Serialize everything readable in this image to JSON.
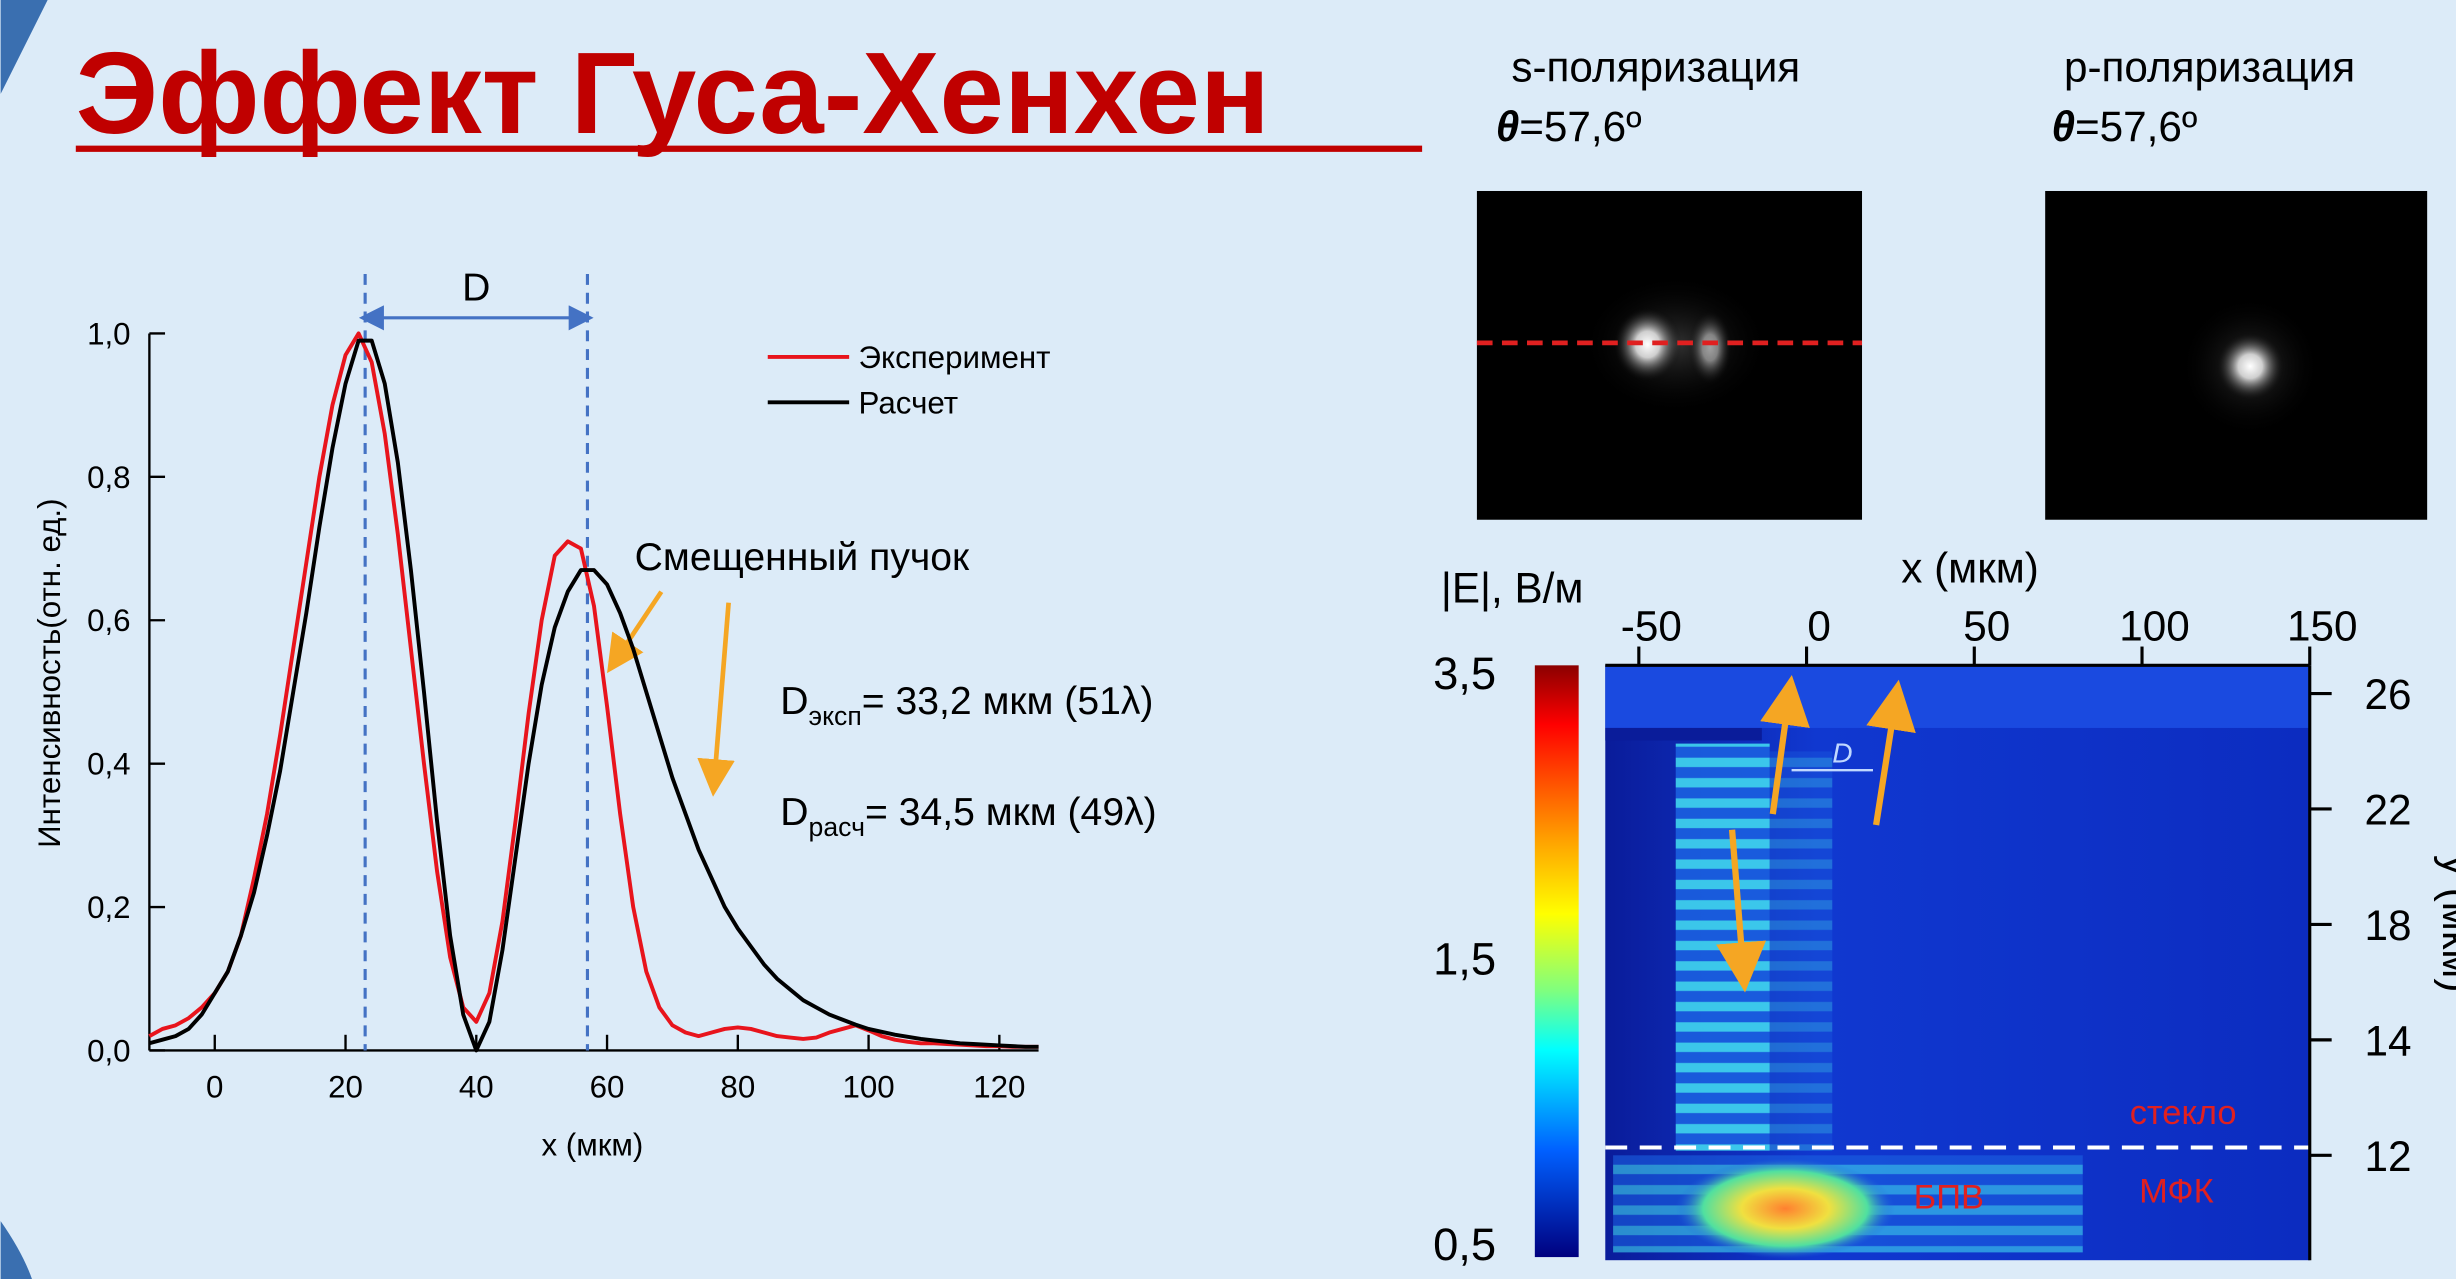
{
  "title": "Эффект Гуса-Хенхен",
  "images": [
    {
      "heading": "s-поляризация",
      "angle_symbol": "θ",
      "angle_value": "=57,6º"
    },
    {
      "heading": "p-поляризация",
      "angle_symbol": "θ",
      "angle_value": "=57,6º"
    }
  ],
  "chart_data": [
    {
      "type": "line",
      "x_label": "x (мкм)",
      "y_label": "Интенсивность(отн. ед.)",
      "x": [
        -10,
        -8,
        -6,
        -4,
        -2,
        0,
        2,
        4,
        6,
        8,
        10,
        12,
        14,
        16,
        18,
        20,
        22,
        24,
        26,
        28,
        30,
        32,
        34,
        36,
        38,
        40,
        42,
        44,
        46,
        48,
        50,
        52,
        54,
        56,
        58,
        60,
        62,
        64,
        66,
        68,
        70,
        72,
        74,
        76,
        78,
        80,
        82,
        84,
        86,
        88,
        90,
        92,
        94,
        96,
        98,
        100,
        102,
        104,
        106,
        108,
        110,
        112,
        114,
        116,
        118,
        120,
        122,
        124,
        126
      ],
      "series": [
        {
          "name": "Эксперимент",
          "color": "#e8141c",
          "values": [
            0.02,
            0.03,
            0.035,
            0.045,
            0.06,
            0.08,
            0.11,
            0.16,
            0.24,
            0.33,
            0.44,
            0.56,
            0.68,
            0.8,
            0.9,
            0.97,
            1.0,
            0.96,
            0.86,
            0.72,
            0.56,
            0.4,
            0.25,
            0.13,
            0.06,
            0.04,
            0.08,
            0.18,
            0.32,
            0.47,
            0.6,
            0.69,
            0.71,
            0.7,
            0.62,
            0.48,
            0.33,
            0.2,
            0.11,
            0.06,
            0.035,
            0.025,
            0.02,
            0.025,
            0.03,
            0.032,
            0.03,
            0.025,
            0.02,
            0.018,
            0.016,
            0.018,
            0.025,
            0.03,
            0.035,
            0.028,
            0.02,
            0.015,
            0.012,
            0.01,
            0.01,
            0.009,
            0.008,
            0.007,
            0.006,
            0.006,
            0.005,
            0.005,
            0.005
          ]
        },
        {
          "name": "Расчет",
          "color": "#000000",
          "values": [
            0.01,
            0.015,
            0.02,
            0.03,
            0.05,
            0.08,
            0.11,
            0.16,
            0.22,
            0.3,
            0.39,
            0.5,
            0.61,
            0.73,
            0.84,
            0.93,
            0.99,
            0.99,
            0.93,
            0.82,
            0.67,
            0.5,
            0.32,
            0.16,
            0.05,
            0.0,
            0.04,
            0.14,
            0.27,
            0.4,
            0.51,
            0.59,
            0.64,
            0.67,
            0.67,
            0.65,
            0.61,
            0.56,
            0.5,
            0.44,
            0.38,
            0.33,
            0.28,
            0.24,
            0.2,
            0.17,
            0.145,
            0.12,
            0.1,
            0.085,
            0.07,
            0.06,
            0.05,
            0.043,
            0.036,
            0.03,
            0.026,
            0.022,
            0.019,
            0.016,
            0.014,
            0.012,
            0.01,
            0.009,
            0.008,
            0.007,
            0.006,
            0.005,
            0.005
          ]
        }
      ],
      "xlim": [
        -10,
        126
      ],
      "ylim": [
        0,
        1
      ],
      "xticks": [
        0,
        20,
        40,
        60,
        80,
        100,
        120
      ],
      "yticks": [
        {
          "value": 0,
          "label": "0,0"
        },
        {
          "value": 0.2,
          "label": "0,2"
        },
        {
          "value": 0.4,
          "label": "0,4"
        },
        {
          "value": 0.6,
          "label": "0,6"
        },
        {
          "value": 0.8,
          "label": "0,8"
        },
        {
          "value": 1,
          "label": "1,0"
        }
      ],
      "markers": {
        "label": "D",
        "x": [
          23,
          57
        ],
        "color": "#4472c4"
      },
      "annotation": "Смещенный пучок",
      "results": [
        {
          "symbol": "D",
          "subscript": "эксп",
          "text": "= 33,2 мкм (51λ)"
        },
        {
          "symbol": "D",
          "subscript": "расч",
          "text": "= 34,5 мкм (49λ)"
        }
      ]
    },
    {
      "type": "heatmap",
      "x_label": "x (мкм)",
      "xlim": [
        -60,
        150
      ],
      "xticks": [
        -50,
        0,
        50,
        100,
        150
      ],
      "colorbar_label": "|E|, В/м",
      "colorbar_labels": [
        "3,5",
        "1,5",
        "0,5"
      ],
      "y2_label": "y (мкм)",
      "y2_categories": [
        "26",
        "22",
        "18",
        "14",
        "12"
      ],
      "annotations": [
        "D",
        "стекло",
        "МФК",
        "БПВ"
      ]
    }
  ]
}
